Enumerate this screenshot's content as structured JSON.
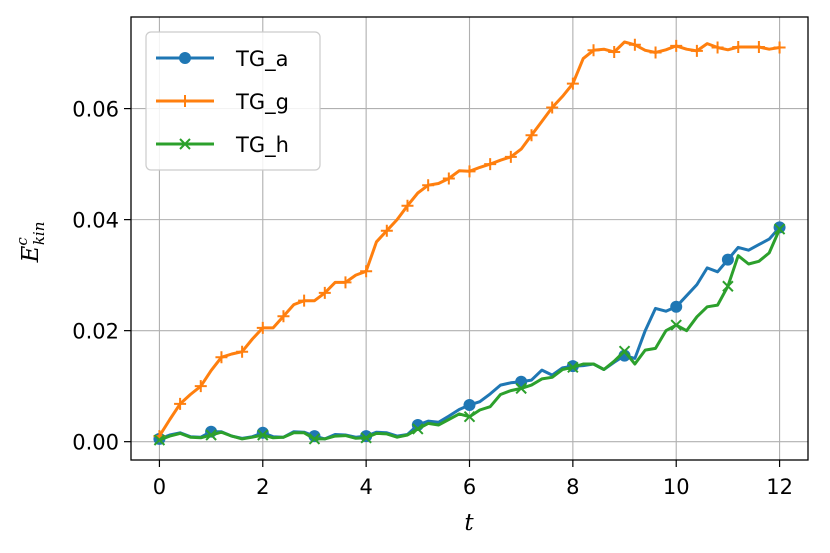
{
  "chart_data": {
    "type": "line",
    "xlabel": "t",
    "ylabel": {
      "base": "E",
      "sup": "c",
      "sub": "kin"
    },
    "xlim": [
      -0.55,
      12.55
    ],
    "ylim": [
      -0.0033,
      0.0765
    ],
    "xticks": [
      0,
      2,
      4,
      6,
      8,
      10,
      12
    ],
    "xtick_labels": [
      "0",
      "2",
      "4",
      "6",
      "8",
      "10",
      "12"
    ],
    "yticks": [
      0.0,
      0.02,
      0.04,
      0.06
    ],
    "ytick_labels": [
      "0.00",
      "0.02",
      "0.04",
      "0.06"
    ],
    "grid": true,
    "legend_position": "top-left",
    "series": [
      {
        "name": "TG_a",
        "color": "#1f77b4",
        "marker": "circle",
        "x": [
          0,
          0.2,
          0.4,
          0.6,
          0.8,
          1.0,
          1.2,
          1.4,
          1.6,
          1.8,
          2.0,
          2.2,
          2.4,
          2.6,
          2.8,
          3.0,
          3.2,
          3.4,
          3.6,
          3.8,
          4.0,
          4.2,
          4.4,
          4.6,
          4.8,
          5.0,
          5.2,
          5.4,
          5.6,
          5.8,
          6.0,
          6.2,
          6.4,
          6.6,
          6.8,
          7.0,
          7.2,
          7.4,
          7.6,
          7.8,
          8.0,
          8.2,
          8.4,
          8.6,
          8.8,
          9.0,
          9.2,
          9.4,
          9.6,
          9.8,
          10.0,
          10.2,
          10.4,
          10.6,
          10.8,
          11.0,
          11.2,
          11.4,
          11.6,
          11.8,
          12.0
        ],
        "y": [
          0.0005,
          0.0012,
          0.0016,
          0.0009,
          0.0008,
          0.0018,
          0.0018,
          0.001,
          0.0006,
          0.0009,
          0.0016,
          0.0009,
          0.0008,
          0.0018,
          0.0017,
          0.001,
          0.0005,
          0.0013,
          0.0012,
          0.0008,
          0.001,
          0.0017,
          0.0016,
          0.001,
          0.0013,
          0.003,
          0.0037,
          0.0035,
          0.0046,
          0.0058,
          0.0066,
          0.0072,
          0.0086,
          0.0102,
          0.0106,
          0.0108,
          0.0111,
          0.0129,
          0.012,
          0.0133,
          0.0136,
          0.0137,
          0.014,
          0.013,
          0.0143,
          0.0155,
          0.015,
          0.02,
          0.024,
          0.0235,
          0.0243,
          0.0263,
          0.0283,
          0.0313,
          0.0306,
          0.0328,
          0.035,
          0.0345,
          0.0355,
          0.0365,
          0.0386
        ],
        "marker_x": [
          0,
          1,
          2,
          3,
          4,
          5,
          6,
          7,
          8,
          9,
          10,
          11,
          12
        ]
      },
      {
        "name": "TG_g",
        "color": "#ff7f0e",
        "marker": "plus",
        "x": [
          0,
          0.2,
          0.4,
          0.6,
          0.8,
          1.0,
          1.2,
          1.4,
          1.6,
          1.8,
          2.0,
          2.2,
          2.4,
          2.6,
          2.8,
          3.0,
          3.2,
          3.4,
          3.6,
          3.8,
          4.0,
          4.2,
          4.4,
          4.6,
          4.8,
          5.0,
          5.2,
          5.4,
          5.6,
          5.8,
          6.0,
          6.2,
          6.4,
          6.6,
          6.8,
          7.0,
          7.2,
          7.4,
          7.6,
          7.8,
          8.0,
          8.2,
          8.4,
          8.6,
          8.8,
          9.0,
          9.2,
          9.4,
          9.6,
          9.8,
          10.0,
          10.2,
          10.4,
          10.6,
          10.8,
          11.0,
          11.2,
          11.4,
          11.6,
          11.8,
          12.0
        ],
        "y": [
          0.001,
          0.004,
          0.0068,
          0.0085,
          0.01,
          0.0128,
          0.0152,
          0.0158,
          0.0162,
          0.0185,
          0.0205,
          0.0205,
          0.0226,
          0.0247,
          0.0254,
          0.0254,
          0.0268,
          0.0287,
          0.0287,
          0.03,
          0.0307,
          0.036,
          0.038,
          0.04,
          0.0425,
          0.0448,
          0.0462,
          0.0465,
          0.0474,
          0.0488,
          0.0487,
          0.0494,
          0.05,
          0.0507,
          0.0513,
          0.0527,
          0.0552,
          0.0577,
          0.0602,
          0.0622,
          0.0645,
          0.069,
          0.0705,
          0.0707,
          0.0702,
          0.072,
          0.0715,
          0.0705,
          0.0701,
          0.0706,
          0.0713,
          0.0707,
          0.0704,
          0.0717,
          0.071,
          0.0706,
          0.0711,
          0.0711,
          0.0711,
          0.0707,
          0.071
        ],
        "marker_x": [
          0,
          0.4,
          0.8,
          1.2,
          1.6,
          2.0,
          2.4,
          2.8,
          3.2,
          3.6,
          4.0,
          4.4,
          4.8,
          5.2,
          5.6,
          6.0,
          6.4,
          6.8,
          7.2,
          7.6,
          8.0,
          8.4,
          8.8,
          9.2,
          9.6,
          10.0,
          10.4,
          10.8,
          11.2,
          11.6,
          12.0
        ]
      },
      {
        "name": "TG_h",
        "color": "#2ca02c",
        "marker": "x",
        "x": [
          0,
          0.2,
          0.4,
          0.6,
          0.8,
          1.0,
          1.2,
          1.4,
          1.6,
          1.8,
          2.0,
          2.2,
          2.4,
          2.6,
          2.8,
          3.0,
          3.2,
          3.4,
          3.6,
          3.8,
          4.0,
          4.2,
          4.4,
          4.6,
          4.8,
          5.0,
          5.2,
          5.4,
          5.6,
          5.8,
          6.0,
          6.2,
          6.4,
          6.6,
          6.8,
          7.0,
          7.2,
          7.4,
          7.6,
          7.8,
          8.0,
          8.2,
          8.4,
          8.6,
          8.8,
          9.0,
          9.2,
          9.4,
          9.6,
          9.8,
          10.0,
          10.2,
          10.4,
          10.6,
          10.8,
          11.0,
          11.2,
          11.4,
          11.6,
          11.8,
          12.0
        ],
        "y": [
          0.0003,
          0.001,
          0.0015,
          0.0008,
          0.0007,
          0.0012,
          0.0017,
          0.001,
          0.0005,
          0.0008,
          0.0012,
          0.0007,
          0.0008,
          0.0016,
          0.0016,
          0.0005,
          0.0005,
          0.001,
          0.0011,
          0.0006,
          0.0007,
          0.0015,
          0.0014,
          0.0008,
          0.0012,
          0.0023,
          0.0033,
          0.003,
          0.004,
          0.005,
          0.0045,
          0.0057,
          0.0063,
          0.0085,
          0.0092,
          0.0096,
          0.0102,
          0.0113,
          0.0116,
          0.013,
          0.0134,
          0.014,
          0.014,
          0.013,
          0.0145,
          0.0163,
          0.014,
          0.0165,
          0.0168,
          0.02,
          0.021,
          0.02,
          0.0225,
          0.0243,
          0.0246,
          0.028,
          0.0335,
          0.032,
          0.0325,
          0.034,
          0.0383
        ],
        "marker_x": [
          0,
          1,
          2,
          3,
          4,
          5,
          6,
          7,
          8,
          9,
          10,
          11,
          12
        ]
      }
    ]
  }
}
